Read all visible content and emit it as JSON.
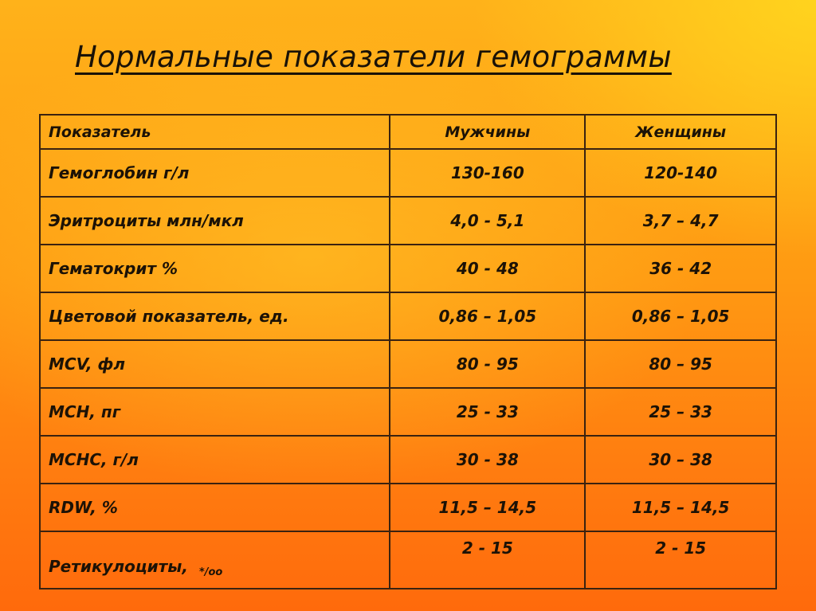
{
  "title": "Нормальные показатели гемограммы",
  "table": {
    "headers": {
      "parameter": "Показатель",
      "men": "Мужчины",
      "women": "Женщины"
    },
    "rows": [
      {
        "parameter": "Гемоглобин г/л",
        "men": "130-160",
        "women": "120-140"
      },
      {
        "parameter": "Эритроциты млн/мкл",
        "men": "4,0 - 5,1",
        "women": "3,7 – 4,7"
      },
      {
        "parameter": "Гематокрит %",
        "men": "40 - 48",
        "women": "36 - 42"
      },
      {
        "parameter": "Цветовой показатель, ед.",
        "men": "0,86 – 1,05",
        "women": "0,86 – 1,05"
      },
      {
        "parameter": "MCV, фл",
        "men": "80 - 95",
        "women": "80 – 95"
      },
      {
        "parameter": "MCH, пг",
        "men": "25 - 33",
        "women": "25 – 33"
      },
      {
        "parameter": "MCHC, г/л",
        "men": "30 - 38",
        "women": "30 – 38"
      },
      {
        "parameter": "RDW, %",
        "men": "11,5 – 14,5",
        "women": "11,5 – 14,5"
      },
      {
        "parameter": "Ретикулоциты,",
        "unit": "*/оо",
        "men": "2 - 15",
        "women": "2 - 15"
      }
    ]
  }
}
